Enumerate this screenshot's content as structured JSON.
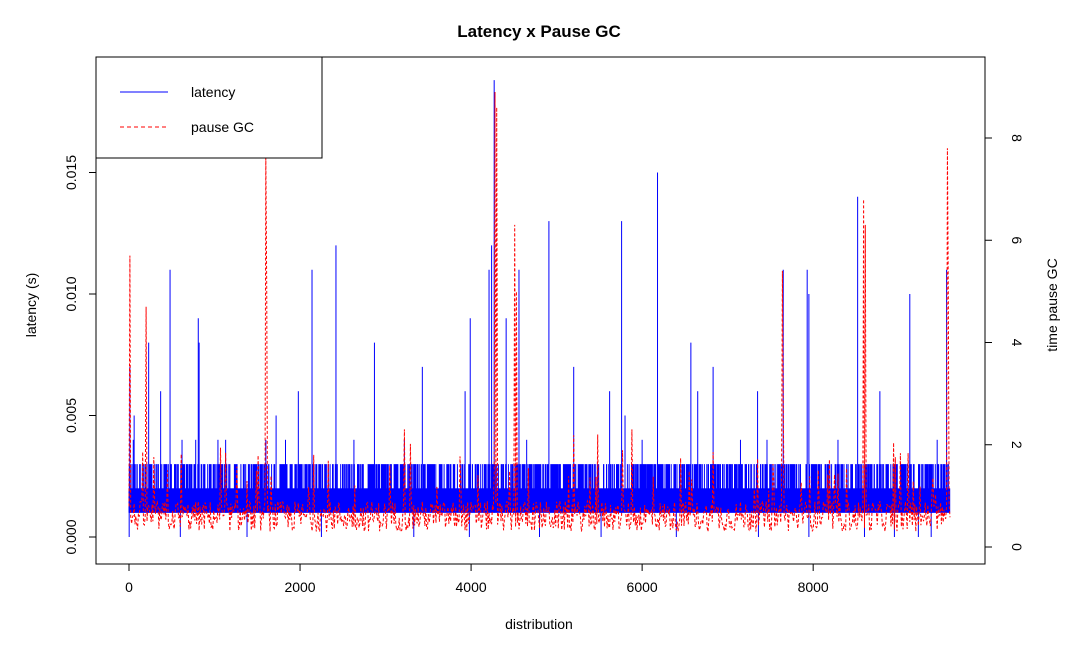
{
  "chart_data": {
    "type": "line",
    "title": "Latency x Pause GC",
    "xlabel": "distribution",
    "ylabel": "latency (s)",
    "y2label": "time pause GC",
    "xlim": [
      0,
      9600
    ],
    "ylim": [
      0,
      0.019
    ],
    "y2lim": [
      0,
      9.2
    ],
    "x_ticks": [
      0,
      2000,
      4000,
      6000,
      8000
    ],
    "y_ticks": [
      0.0,
      0.005,
      0.01,
      0.015
    ],
    "y_tick_labels": [
      "0.000",
      "0.005",
      "0.010",
      "0.015"
    ],
    "y2_ticks": [
      0,
      2,
      4,
      6,
      8
    ],
    "legend_position": "top-left",
    "grid": false,
    "series": [
      {
        "name": "latency",
        "axis": "left",
        "color": "#0000ff",
        "style": "solid",
        "baseline_range": [
          0.001,
          0.002
        ],
        "frequent_level": 0.003,
        "spikes": [
          [
            10,
            0.007
          ],
          [
            50,
            0.004
          ],
          [
            60,
            0.005
          ],
          [
            230,
            0.008
          ],
          [
            370,
            0.006
          ],
          [
            480,
            0.011
          ],
          [
            620,
            0.004
          ],
          [
            780,
            0.004
          ],
          [
            810,
            0.009
          ],
          [
            820,
            0.008
          ],
          [
            1040,
            0.004
          ],
          [
            1130,
            0.004
          ],
          [
            1600,
            0.004
          ],
          [
            1720,
            0.005
          ],
          [
            1830,
            0.004
          ],
          [
            1980,
            0.006
          ],
          [
            2140,
            0.011
          ],
          [
            2420,
            0.012
          ],
          [
            2630,
            0.004
          ],
          [
            2870,
            0.008
          ],
          [
            3220,
            0.004
          ],
          [
            3430,
            0.007
          ],
          [
            3930,
            0.006
          ],
          [
            3990,
            0.009
          ],
          [
            4210,
            0.011
          ],
          [
            4240,
            0.012
          ],
          [
            4270,
            0.0188
          ],
          [
            4410,
            0.009
          ],
          [
            4560,
            0.011
          ],
          [
            4650,
            0.004
          ],
          [
            4910,
            0.013
          ],
          [
            5200,
            0.007
          ],
          [
            5620,
            0.006
          ],
          [
            5760,
            0.013
          ],
          [
            5800,
            0.005
          ],
          [
            6000,
            0.004
          ],
          [
            6180,
            0.015
          ],
          [
            6570,
            0.008
          ],
          [
            6650,
            0.006
          ],
          [
            6830,
            0.007
          ],
          [
            7150,
            0.004
          ],
          [
            7350,
            0.006
          ],
          [
            7460,
            0.004
          ],
          [
            7650,
            0.011
          ],
          [
            7930,
            0.011
          ],
          [
            7950,
            0.01
          ],
          [
            8290,
            0.004
          ],
          [
            8520,
            0.014
          ],
          [
            8780,
            0.006
          ],
          [
            9130,
            0.01
          ],
          [
            9450,
            0.004
          ],
          [
            9560,
            0.011
          ]
        ],
        "dips": [
          2,
          600,
          1380,
          2250,
          3330,
          3980,
          4800,
          5520,
          6400,
          7360,
          7950,
          8600,
          8950,
          9230,
          9380
        ]
      },
      {
        "name": "pause GC",
        "axis": "right",
        "color": "#ff0000",
        "style": "dashed",
        "baseline_range": [
          0.3,
          0.9
        ],
        "spikes": [
          [
            10,
            5.7
          ],
          [
            200,
            4.7
          ],
          [
            1600,
            7.7
          ],
          [
            1610,
            5.1
          ],
          [
            3220,
            2.3
          ],
          [
            4280,
            8.9
          ],
          [
            4300,
            8.6
          ],
          [
            4510,
            6.3
          ],
          [
            4530,
            5.0
          ],
          [
            5480,
            2.2
          ],
          [
            5880,
            2.3
          ],
          [
            7640,
            5.4
          ],
          [
            7650,
            3.0
          ],
          [
            8590,
            6.8
          ],
          [
            8610,
            6.3
          ],
          [
            9570,
            7.8
          ],
          [
            9580,
            5.0
          ]
        ]
      }
    ]
  }
}
